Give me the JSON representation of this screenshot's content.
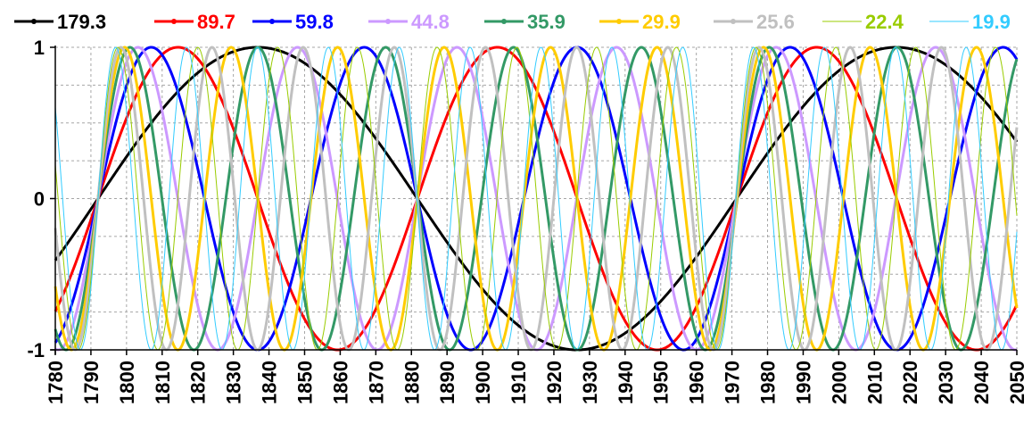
{
  "chart_data": {
    "type": "line",
    "title": "",
    "xlabel": "",
    "ylabel": "",
    "xlim": [
      1780,
      2050
    ],
    "ylim": [
      -1,
      1
    ],
    "grid": true,
    "legend_position": "top",
    "x_ticks": [
      1780,
      1790,
      1800,
      1810,
      1820,
      1830,
      1840,
      1850,
      1860,
      1870,
      1880,
      1890,
      1900,
      1910,
      1920,
      1930,
      1940,
      1950,
      1960,
      1970,
      1980,
      1990,
      2000,
      2010,
      2020,
      2030,
      2040,
      2050
    ],
    "y_ticks": [
      -1,
      0,
      1
    ],
    "y_tick_labels": [
      "-1",
      "0",
      "1"
    ],
    "zero_crossing_year": 1792,
    "series": [
      {
        "name": "179.3",
        "period_years": 179.3,
        "color": "#000000",
        "marker": "dot"
      },
      {
        "name": "89.7",
        "period_years": 89.7,
        "color": "#ff0000",
        "marker": "dot"
      },
      {
        "name": "59.8",
        "period_years": 59.8,
        "color": "#0000ff",
        "marker": "dot"
      },
      {
        "name": "44.8",
        "period_years": 44.8,
        "color": "#cc99ff",
        "marker": "dot"
      },
      {
        "name": "35.9",
        "period_years": 35.9,
        "color": "#339966",
        "marker": "dot"
      },
      {
        "name": "29.9",
        "period_years": 29.9,
        "color": "#ffcc00",
        "marker": "dot"
      },
      {
        "name": "25.6",
        "period_years": 25.6,
        "color": "#c0c0c0",
        "marker": "dot"
      },
      {
        "name": "22.4",
        "period_years": 22.4,
        "color": "#99cc00",
        "marker": "none"
      },
      {
        "name": "19.9",
        "period_years": 19.9,
        "color": "#33ccff",
        "marker": "none"
      }
    ]
  }
}
